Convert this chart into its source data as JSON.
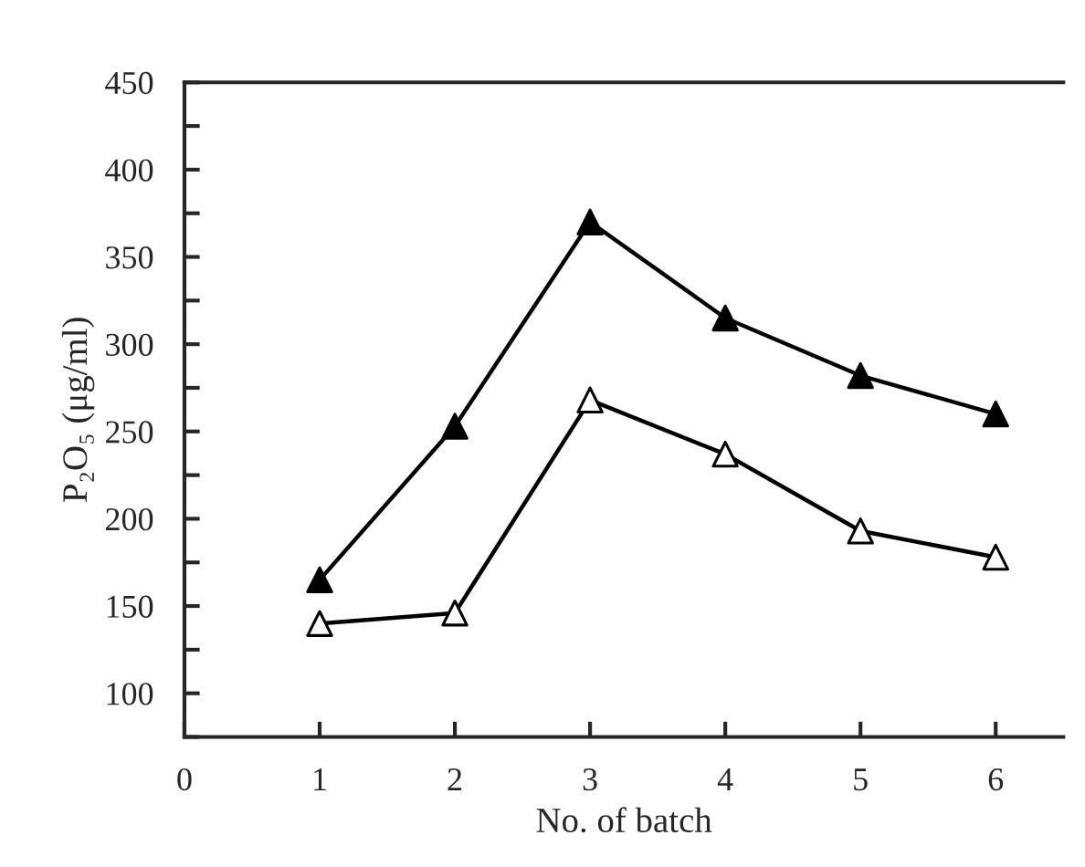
{
  "chart_data": {
    "type": "line",
    "xlabel": "No. of batch",
    "ylabel": "P₂O₅ (μg/ml)",
    "x": [
      1,
      2,
      3,
      4,
      5,
      6
    ],
    "series": [
      {
        "color": "#000000",
        "colors": [
          "#000000",
          "#000000",
          "#000000",
          "#000000",
          "#000000",
          "#000000"
        ],
        "values": [
          165,
          253,
          370,
          315,
          282,
          260
        ]
      },
      {
        "color": "#000000",
        "colors": [
          "#ffffff",
          "#ffffff",
          "#ffffff",
          "#ffffff",
          "#ffffff",
          "#ffffff"
        ],
        "values": [
          140,
          146,
          268,
          237,
          193,
          178
        ]
      }
    ],
    "marker": "triangle",
    "line_style": "solid",
    "grid": false,
    "legend": false,
    "xlim": [
      0,
      6.5
    ],
    "xticks": [
      0,
      1,
      2,
      3,
      4,
      5,
      6
    ],
    "ylim": [
      75,
      450
    ],
    "yticks": [
      {
        "value": 75,
        "label": null
      },
      100,
      {
        "value": 125,
        "label": null
      },
      150,
      {
        "value": 175,
        "label": null
      },
      200,
      {
        "value": 225,
        "label": null
      },
      250,
      {
        "value": 275,
        "label": null
      },
      300,
      {
        "value": 325,
        "label": null
      },
      350,
      {
        "value": 375,
        "label": null
      },
      400,
      {
        "value": 425,
        "label": null
      },
      450
    ]
  }
}
